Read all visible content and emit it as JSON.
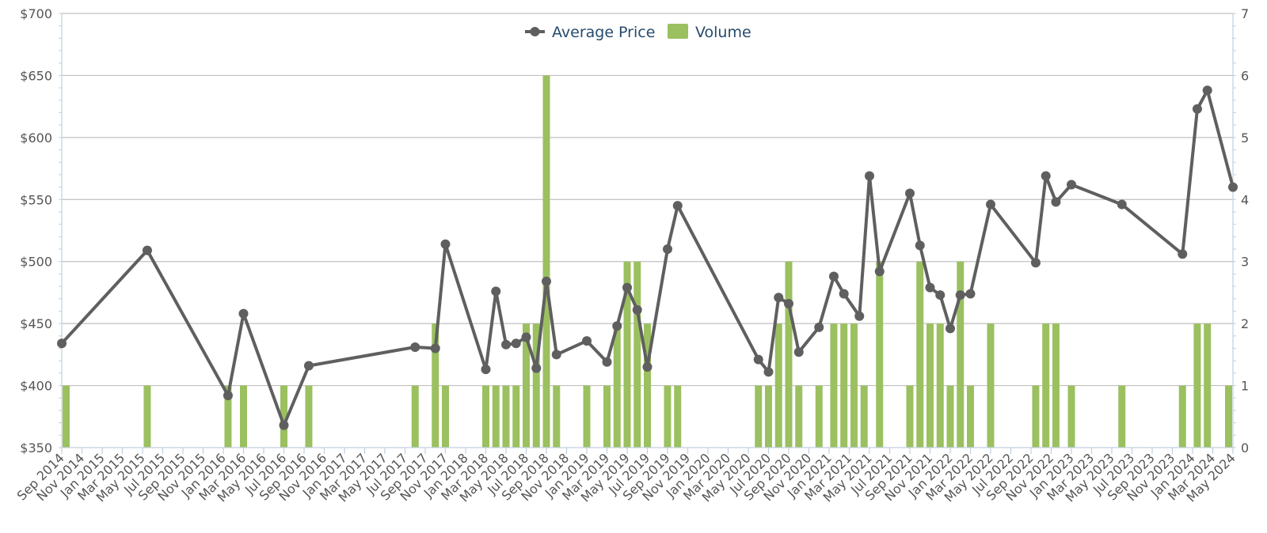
{
  "colors": {
    "line": "#5f5f5f",
    "bar": "#9bc060",
    "grid": "#c0c0c0",
    "axis": "#c0d0e0",
    "legend_text": "#274b6d",
    "tick_text": "#555555"
  },
  "legend": {
    "placement": "top-center",
    "items": [
      "Average Price",
      "Volume"
    ]
  },
  "chart_data": {
    "type": "bar+line",
    "title": "",
    "x_axis": {
      "type": "monthly-time",
      "range": [
        "2014-09",
        "2024-05"
      ],
      "tick_labels": [
        "Sep 2014",
        "Nov 2014",
        "Jan 2015",
        "Mar 2015",
        "May 2015",
        "Jul 2015",
        "Sep 2015",
        "Nov 2015",
        "Jan 2016",
        "Mar 2016",
        "May 2016",
        "Jul 2016",
        "Sep 2016",
        "Nov 2016",
        "Jan 2017",
        "Mar 2017",
        "May 2017",
        "Jul 2017",
        "Sep 2017",
        "Nov 2017",
        "Jan 2018",
        "Mar 2018",
        "May 2018",
        "Jul 2018",
        "Sep 2018",
        "Nov 2018",
        "Jan 2019",
        "Mar 2019",
        "May 2019",
        "Jul 2019",
        "Sep 2019",
        "Nov 2019",
        "Jan 2020",
        "Mar 2020",
        "May 2020",
        "Jul 2020",
        "Sep 2020",
        "Nov 2020",
        "Jan 2021",
        "Mar 2021",
        "May 2021",
        "Jul 2021",
        "Sep 2021",
        "Nov 2021",
        "Jan 2022",
        "Mar 2022",
        "May 2022",
        "Jul 2022",
        "Sep 2022",
        "Nov 2022",
        "Jan 2023",
        "Mar 2023",
        "May 2023",
        "Jul 2023",
        "Sep 2023",
        "Nov 2023",
        "Jan 2024",
        "Mar 2024",
        "May 2024"
      ]
    },
    "y_axis_left": {
      "label": "",
      "range": [
        350,
        700
      ],
      "ticks": [
        350,
        400,
        450,
        500,
        550,
        600,
        650,
        700
      ],
      "tick_labels": [
        "$350",
        "$400",
        "$450",
        "$500",
        "$550",
        "$600",
        "$650",
        "$700"
      ]
    },
    "y_axis_right": {
      "label": "",
      "range": [
        0,
        7
      ],
      "ticks": [
        0,
        1,
        2,
        3,
        4,
        5,
        6,
        7
      ],
      "tick_labels": [
        "0",
        "1",
        "2",
        "3",
        "4",
        "5",
        "6",
        "7"
      ]
    },
    "grid": true,
    "series": [
      {
        "name": "Average Price",
        "type": "line",
        "axis": "left",
        "points": [
          [
            "2014-09-01",
            434
          ],
          [
            "2015-05-15",
            509
          ],
          [
            "2016-01-15",
            392
          ],
          [
            "2016-03-01",
            458
          ],
          [
            "2016-07-01",
            368
          ],
          [
            "2016-09-15",
            416
          ],
          [
            "2017-08-01",
            431
          ],
          [
            "2017-10-01",
            430
          ],
          [
            "2017-11-01",
            514
          ],
          [
            "2018-03-01",
            413
          ],
          [
            "2018-04-01",
            476
          ],
          [
            "2018-05-01",
            433
          ],
          [
            "2018-06-01",
            434
          ],
          [
            "2018-07-01",
            439
          ],
          [
            "2018-08-01",
            414
          ],
          [
            "2018-09-01",
            484
          ],
          [
            "2018-10-01",
            425
          ],
          [
            "2019-01-01",
            436
          ],
          [
            "2019-03-01",
            419
          ],
          [
            "2019-04-01",
            448
          ],
          [
            "2019-05-01",
            479
          ],
          [
            "2019-06-01",
            461
          ],
          [
            "2019-07-01",
            415
          ],
          [
            "2019-09-01",
            510
          ],
          [
            "2019-10-01",
            545
          ],
          [
            "2020-06-01",
            421
          ],
          [
            "2020-07-01",
            411
          ],
          [
            "2020-08-01",
            471
          ],
          [
            "2020-09-01",
            466
          ],
          [
            "2020-10-01",
            427
          ],
          [
            "2020-12-01",
            447
          ],
          [
            "2021-01-15",
            488
          ],
          [
            "2021-02-15",
            474
          ],
          [
            "2021-04-01",
            456
          ],
          [
            "2021-05-01",
            569
          ],
          [
            "2021-06-01",
            492
          ],
          [
            "2021-09-01",
            555
          ],
          [
            "2021-10-01",
            513
          ],
          [
            "2021-11-01",
            479
          ],
          [
            "2021-12-01",
            473
          ],
          [
            "2022-01-01",
            446
          ],
          [
            "2022-02-01",
            473
          ],
          [
            "2022-03-01",
            474
          ],
          [
            "2022-05-01",
            546
          ],
          [
            "2022-09-15",
            499
          ],
          [
            "2022-10-15",
            569
          ],
          [
            "2022-11-15",
            548
          ],
          [
            "2023-01-01",
            562
          ],
          [
            "2023-06-01",
            546
          ],
          [
            "2023-12-01",
            506
          ],
          [
            "2024-01-15",
            623
          ],
          [
            "2024-02-15",
            638
          ],
          [
            "2024-05-01",
            560
          ]
        ]
      },
      {
        "name": "Volume",
        "type": "bar",
        "axis": "right",
        "points": [
          [
            "2014-09-01",
            1
          ],
          [
            "2015-05-15",
            1
          ],
          [
            "2016-01-15",
            1
          ],
          [
            "2016-03-01",
            1
          ],
          [
            "2016-07-01",
            1
          ],
          [
            "2016-09-15",
            1
          ],
          [
            "2017-08-01",
            1
          ],
          [
            "2017-10-01",
            2
          ],
          [
            "2017-11-01",
            1
          ],
          [
            "2018-03-01",
            1
          ],
          [
            "2018-04-01",
            1
          ],
          [
            "2018-05-01",
            1
          ],
          [
            "2018-06-01",
            1
          ],
          [
            "2018-07-01",
            2
          ],
          [
            "2018-08-01",
            2
          ],
          [
            "2018-09-01",
            6
          ],
          [
            "2018-10-01",
            1
          ],
          [
            "2019-01-01",
            1
          ],
          [
            "2019-03-01",
            1
          ],
          [
            "2019-04-01",
            2
          ],
          [
            "2019-05-01",
            3
          ],
          [
            "2019-06-01",
            3
          ],
          [
            "2019-07-01",
            2
          ],
          [
            "2019-09-01",
            1
          ],
          [
            "2019-10-01",
            1
          ],
          [
            "2020-06-01",
            1
          ],
          [
            "2020-07-01",
            1
          ],
          [
            "2020-08-01",
            2
          ],
          [
            "2020-09-01",
            3
          ],
          [
            "2020-10-01",
            1
          ],
          [
            "2020-12-01",
            1
          ],
          [
            "2021-01-15",
            2
          ],
          [
            "2021-02-15",
            2
          ],
          [
            "2021-03-15",
            2
          ],
          [
            "2021-04-15",
            1
          ],
          [
            "2021-06-01",
            3
          ],
          [
            "2021-09-01",
            1
          ],
          [
            "2021-10-01",
            3
          ],
          [
            "2021-11-01",
            2
          ],
          [
            "2021-12-01",
            2
          ],
          [
            "2022-01-01",
            1
          ],
          [
            "2022-02-01",
            3
          ],
          [
            "2022-03-01",
            1
          ],
          [
            "2022-05-01",
            2
          ],
          [
            "2022-09-15",
            1
          ],
          [
            "2022-10-15",
            2
          ],
          [
            "2022-11-15",
            2
          ],
          [
            "2023-01-01",
            1
          ],
          [
            "2023-06-01",
            1
          ],
          [
            "2023-12-01",
            1
          ],
          [
            "2024-01-15",
            2
          ],
          [
            "2024-02-15",
            2
          ],
          [
            "2024-05-01",
            1
          ]
        ]
      }
    ]
  }
}
